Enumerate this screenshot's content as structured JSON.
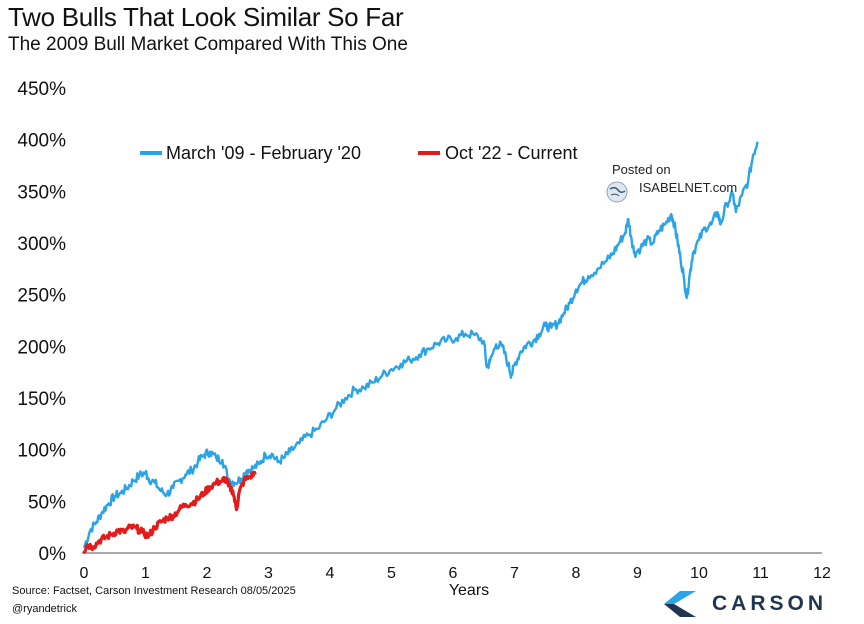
{
  "header": {
    "title": "Two Bulls That Look Similar So Far",
    "subtitle": "The 2009 Bull Market Compared With This One"
  },
  "footer": {
    "source": "Source: Factset, Carson Investment Research 08/05/2025",
    "handle": "@ryandetrick"
  },
  "watermark": {
    "posted": "Posted on",
    "brand": "ISABELNET.com",
    "icon": "globe-icon"
  },
  "brand": {
    "name": "CARSON",
    "icon": "carson-logo-icon",
    "color": "#1f3550"
  },
  "chart_data": {
    "type": "line",
    "title": "Two Bulls That Look Similar So Far",
    "subtitle": "The 2009 Bull Market Compared With This One",
    "xlabel": "Years",
    "ylabel": "",
    "xlim": [
      0,
      12
    ],
    "ylim": [
      0,
      450
    ],
    "x_ticks": [
      0,
      1,
      2,
      3,
      4,
      5,
      6,
      7,
      8,
      9,
      10,
      11,
      12
    ],
    "x_tick_labels": [
      "0",
      "1",
      "2",
      "3",
      "4",
      "5",
      "6",
      "7",
      "8",
      "9",
      "10",
      "11",
      "12"
    ],
    "y_ticks": [
      0,
      50,
      100,
      150,
      200,
      250,
      300,
      350,
      400,
      450
    ],
    "y_tick_labels": [
      "0%",
      "50%",
      "100%",
      "150%",
      "200%",
      "250%",
      "300%",
      "350%",
      "400%",
      "450%"
    ],
    "grid": false,
    "legend_position": "top-center",
    "series": [
      {
        "name": "March '09 - February '20",
        "color": "#2aa3e8",
        "points": [
          [
            0,
            5
          ],
          [
            0.1,
            22
          ],
          [
            0.2,
            30
          ],
          [
            0.3,
            40
          ],
          [
            0.4,
            48
          ],
          [
            0.5,
            55
          ],
          [
            0.6,
            58
          ],
          [
            0.7,
            63
          ],
          [
            0.8,
            70
          ],
          [
            0.9,
            75
          ],
          [
            1.0,
            78
          ],
          [
            1.05,
            72
          ],
          [
            1.15,
            68
          ],
          [
            1.25,
            60
          ],
          [
            1.35,
            57
          ],
          [
            1.45,
            63
          ],
          [
            1.55,
            70
          ],
          [
            1.65,
            76
          ],
          [
            1.75,
            80
          ],
          [
            1.85,
            88
          ],
          [
            1.95,
            95
          ],
          [
            2.05,
            98
          ],
          [
            2.15,
            92
          ],
          [
            2.25,
            90
          ],
          [
            2.35,
            72
          ],
          [
            2.45,
            68
          ],
          [
            2.55,
            72
          ],
          [
            2.65,
            80
          ],
          [
            2.75,
            82
          ],
          [
            2.85,
            86
          ],
          [
            2.95,
            95
          ],
          [
            3.05,
            96
          ],
          [
            3.15,
            88
          ],
          [
            3.25,
            92
          ],
          [
            3.35,
            98
          ],
          [
            3.5,
            106
          ],
          [
            3.65,
            114
          ],
          [
            3.8,
            120
          ],
          [
            3.95,
            130
          ],
          [
            4.1,
            140
          ],
          [
            4.25,
            150
          ],
          [
            4.4,
            158
          ],
          [
            4.55,
            160
          ],
          [
            4.7,
            165
          ],
          [
            4.85,
            172
          ],
          [
            5.0,
            178
          ],
          [
            5.15,
            183
          ],
          [
            5.3,
            187
          ],
          [
            5.45,
            192
          ],
          [
            5.6,
            198
          ],
          [
            5.75,
            203
          ],
          [
            5.9,
            206
          ],
          [
            6.05,
            208
          ],
          [
            6.2,
            212
          ],
          [
            6.35,
            211
          ],
          [
            6.5,
            205
          ],
          [
            6.55,
            180
          ],
          [
            6.6,
            185
          ],
          [
            6.7,
            202
          ],
          [
            6.8,
            200
          ],
          [
            6.9,
            182
          ],
          [
            6.95,
            172
          ],
          [
            7.0,
            182
          ],
          [
            7.1,
            195
          ],
          [
            7.2,
            202
          ],
          [
            7.3,
            205
          ],
          [
            7.4,
            212
          ],
          [
            7.5,
            220
          ],
          [
            7.6,
            218
          ],
          [
            7.7,
            222
          ],
          [
            7.8,
            232
          ],
          [
            7.9,
            242
          ],
          [
            8.0,
            255
          ],
          [
            8.1,
            262
          ],
          [
            8.2,
            268
          ],
          [
            8.35,
            275
          ],
          [
            8.5,
            283
          ],
          [
            8.6,
            290
          ],
          [
            8.7,
            300
          ],
          [
            8.8,
            310
          ],
          [
            8.85,
            323
          ],
          [
            8.9,
            305
          ],
          [
            8.95,
            290
          ],
          [
            9.05,
            295
          ],
          [
            9.15,
            303
          ],
          [
            9.25,
            300
          ],
          [
            9.35,
            312
          ],
          [
            9.45,
            318
          ],
          [
            9.55,
            328
          ],
          [
            9.6,
            318
          ],
          [
            9.65,
            302
          ],
          [
            9.7,
            285
          ],
          [
            9.75,
            268
          ],
          [
            9.8,
            247
          ],
          [
            9.85,
            270
          ],
          [
            9.9,
            290
          ],
          [
            10.0,
            303
          ],
          [
            10.1,
            315
          ],
          [
            10.2,
            318
          ],
          [
            10.3,
            330
          ],
          [
            10.35,
            318
          ],
          [
            10.45,
            338
          ],
          [
            10.55,
            347
          ],
          [
            10.6,
            330
          ],
          [
            10.7,
            346
          ],
          [
            10.8,
            360
          ],
          [
            10.88,
            385
          ],
          [
            10.95,
            398
          ]
        ]
      },
      {
        "name": "Oct '22 - Current",
        "color": "#e31b1b",
        "points": [
          [
            0,
            2
          ],
          [
            0.05,
            8
          ],
          [
            0.15,
            6
          ],
          [
            0.25,
            12
          ],
          [
            0.35,
            15
          ],
          [
            0.45,
            18
          ],
          [
            0.55,
            22
          ],
          [
            0.65,
            20
          ],
          [
            0.75,
            25
          ],
          [
            0.85,
            24
          ],
          [
            0.95,
            20
          ],
          [
            1.05,
            16
          ],
          [
            1.15,
            25
          ],
          [
            1.25,
            30
          ],
          [
            1.35,
            34
          ],
          [
            1.45,
            36
          ],
          [
            1.55,
            42
          ],
          [
            1.65,
            47
          ],
          [
            1.75,
            48
          ],
          [
            1.85,
            52
          ],
          [
            1.95,
            58
          ],
          [
            2.05,
            64
          ],
          [
            2.15,
            68
          ],
          [
            2.25,
            70
          ],
          [
            2.3,
            72
          ],
          [
            2.35,
            65
          ],
          [
            2.42,
            60
          ],
          [
            2.48,
            42
          ],
          [
            2.52,
            58
          ],
          [
            2.6,
            70
          ],
          [
            2.7,
            74
          ],
          [
            2.8,
            78
          ]
        ]
      }
    ]
  }
}
